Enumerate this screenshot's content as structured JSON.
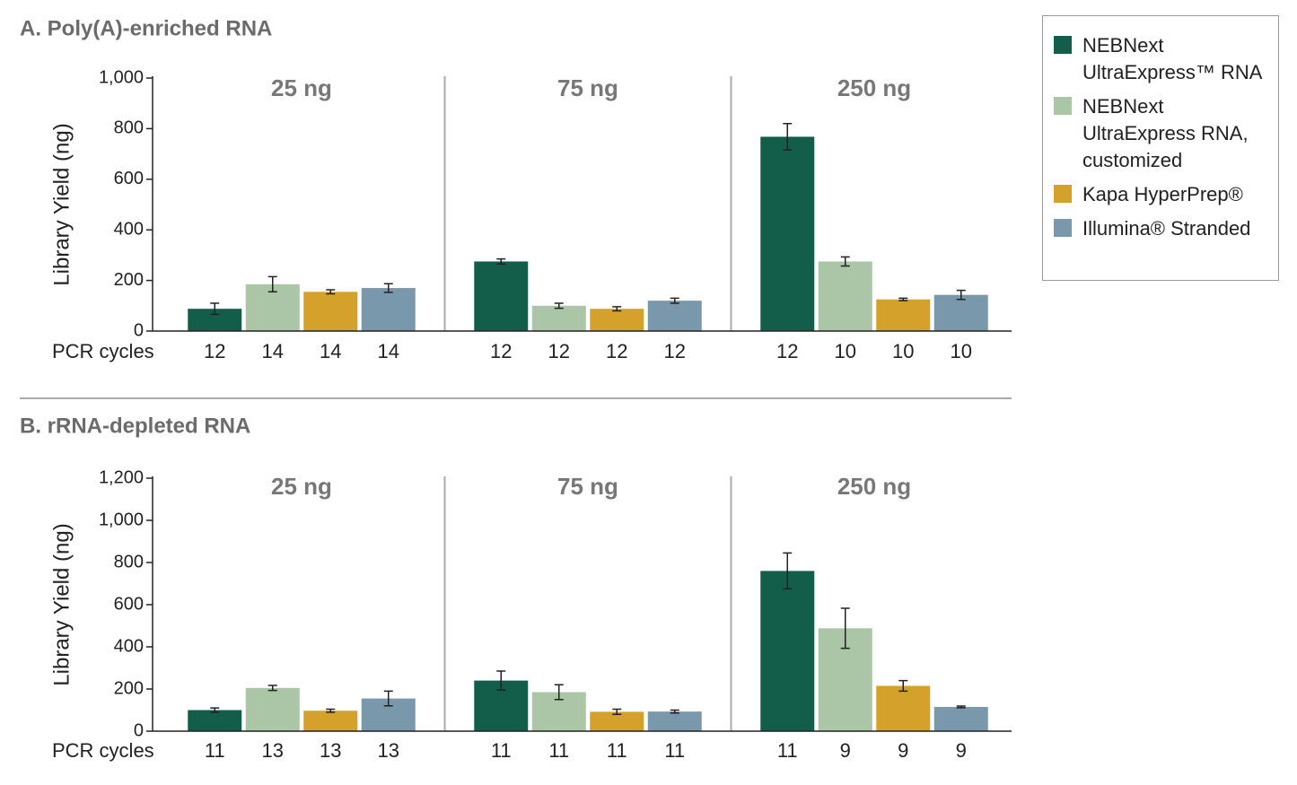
{
  "chart_data": [
    {
      "type": "bar",
      "title": "A. Poly(A)-enriched RNA",
      "ylabel": "Library Yield (ng)",
      "xlabel": "PCR cycles",
      "groups": [
        "25 ng",
        "75 ng",
        "250 ng"
      ],
      "ylim": [
        0,
        1000
      ],
      "yticks": [
        0,
        200,
        400,
        600,
        800,
        {
          "value": 1000,
          "label": "1,000"
        }
      ],
      "series": [
        {
          "name": "NEBNext UltraExpress™ RNA",
          "color": "#135e4a",
          "values": [
            88,
            275,
            768
          ],
          "errors": [
            22,
            10,
            52
          ],
          "cycles": [
            "12",
            "12",
            "12"
          ]
        },
        {
          "name": "NEBNext UltraExpress RNA, customized",
          "color": "#abc6a6",
          "values": [
            185,
            100,
            275
          ],
          "errors": [
            30,
            10,
            18
          ],
          "cycles": [
            "14",
            "12",
            "10"
          ]
        },
        {
          "name": "Kapa HyperPrep®",
          "color": "#d4a22a",
          "values": [
            155,
            88,
            125
          ],
          "errors": [
            8,
            8,
            5
          ],
          "cycles": [
            "14",
            "12",
            "10"
          ]
        },
        {
          "name": "Illumina® Stranded",
          "color": "#7a98ac",
          "values": [
            170,
            120,
            143
          ],
          "errors": [
            17,
            10,
            18
          ],
          "cycles": [
            "14",
            "12",
            "10"
          ]
        }
      ]
    },
    {
      "type": "bar",
      "title": "B. rRNA-depleted RNA",
      "ylabel": "Library Yield (ng)",
      "xlabel": "PCR cycles",
      "groups": [
        "25 ng",
        "75 ng",
        "250 ng"
      ],
      "ylim": [
        0,
        1200
      ],
      "yticks": [
        0,
        200,
        400,
        600,
        800,
        {
          "value": 1000,
          "label": "1,000"
        },
        {
          "value": 1200,
          "label": "1,200"
        }
      ],
      "series": [
        {
          "color": "#135e4a",
          "values": [
            100,
            240,
            760
          ],
          "errors": [
            10,
            45,
            85
          ],
          "cycles": [
            "11",
            "11",
            "11"
          ]
        },
        {
          "color": "#abc6a6",
          "values": [
            205,
            185,
            488
          ],
          "errors": [
            12,
            35,
            95
          ],
          "cycles": [
            "13",
            "11",
            "9"
          ]
        },
        {
          "color": "#d4a22a",
          "values": [
            97,
            92,
            215
          ],
          "errors": [
            7,
            12,
            25
          ],
          "cycles": [
            "13",
            "11",
            "9"
          ]
        },
        {
          "color": "#7a98ac",
          "values": [
            155,
            93,
            115
          ],
          "errors": [
            35,
            7,
            4
          ],
          "cycles": [
            "13",
            "11",
            "9"
          ]
        }
      ]
    }
  ]
}
